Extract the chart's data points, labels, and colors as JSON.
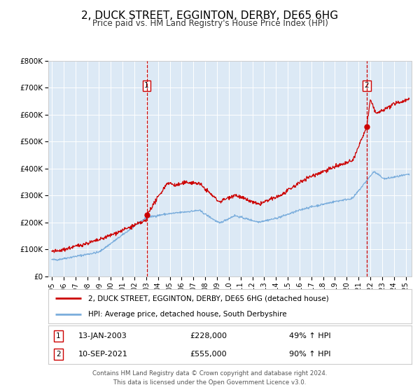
{
  "title": "2, DUCK STREET, EGGINTON, DERBY, DE65 6HG",
  "subtitle": "Price paid vs. HM Land Registry's House Price Index (HPI)",
  "title_fontsize": 11,
  "subtitle_fontsize": 8.5,
  "bg_color": "#dce9f5",
  "plot_bg_color": "#dce9f5",
  "fig_bg_color": "#ffffff",
  "red_line_color": "#cc0000",
  "blue_line_color": "#7aaddc",
  "red_marker_color": "#cc0000",
  "ylim": [
    0,
    800000
  ],
  "yticks": [
    0,
    100000,
    200000,
    300000,
    400000,
    500000,
    600000,
    700000,
    800000
  ],
  "ytick_labels": [
    "£0",
    "£100K",
    "£200K",
    "£300K",
    "£400K",
    "£500K",
    "£600K",
    "£700K",
    "£800K"
  ],
  "xlim_start": 1994.7,
  "xlim_end": 2025.5,
  "xtick_years": [
    1995,
    1996,
    1997,
    1998,
    1999,
    2000,
    2001,
    2002,
    2003,
    2004,
    2005,
    2006,
    2007,
    2008,
    2009,
    2010,
    2011,
    2012,
    2013,
    2014,
    2015,
    2016,
    2017,
    2018,
    2019,
    2020,
    2021,
    2022,
    2023,
    2024,
    2025
  ],
  "legend_red_label": "2, DUCK STREET, EGGINTON, DERBY, DE65 6HG (detached house)",
  "legend_blue_label": "HPI: Average price, detached house, South Derbyshire",
  "annotation1_label": "1",
  "annotation1_date": "13-JAN-2003",
  "annotation1_price": "£228,000",
  "annotation1_hpi": "49% ↑ HPI",
  "annotation1_year": 2003.04,
  "annotation1_value": 228000,
  "annotation2_label": "2",
  "annotation2_date": "10-SEP-2021",
  "annotation2_price": "£555,000",
  "annotation2_hpi": "90% ↑ HPI",
  "annotation2_year": 2021.69,
  "annotation2_value": 555000,
  "footer_text": "Contains HM Land Registry data © Crown copyright and database right 2024.\nThis data is licensed under the Open Government Licence v3.0.",
  "grid_color": "#ffffff",
  "vline_color": "#cc0000",
  "spine_color": "#cccccc"
}
